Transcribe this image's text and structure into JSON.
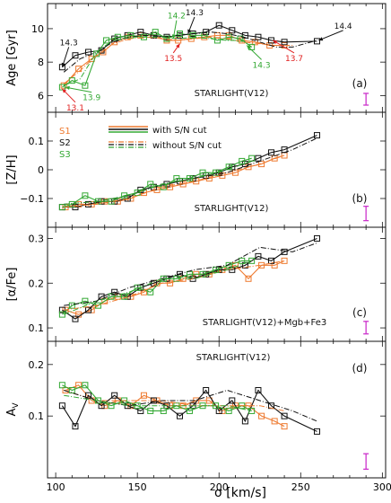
{
  "colors": {
    "orange": "#ee7a30",
    "black": "#111111",
    "green": "#33a833",
    "red": "#e02020",
    "magenta": "#cc33cc"
  },
  "xaxis": {
    "label": "σ [km/s]",
    "range": [
      95,
      302
    ],
    "ticks": [
      100,
      150,
      200,
      250,
      300
    ],
    "tick_labels": [
      "100",
      "150",
      "200",
      "250",
      "300"
    ]
  },
  "legend": {
    "samples": [
      "S1",
      "S2",
      "S3"
    ],
    "with_cut": "with S/N cut",
    "without_cut": "without S/N cut"
  },
  "chart_data": [
    {
      "type": "line",
      "panel": "(a)",
      "ylabel": "Age [Gyr]",
      "ylim": [
        5,
        11.5
      ],
      "yticks": [
        6,
        8,
        10
      ],
      "ytick_labels": [
        "6",
        "8",
        "10"
      ],
      "note": "STARLIGHT(V12)",
      "errorbar": {
        "x": 290,
        "half": 0.35
      },
      "series": [
        {
          "name": "S1",
          "color": "orange",
          "style": "solid",
          "x": [
            105,
            114,
            122,
            129,
            136,
            144,
            152,
            160,
            168,
            175,
            183,
            191,
            199,
            206,
            214,
            222,
            231,
            240
          ],
          "y": [
            6.6,
            7.6,
            8.2,
            8.6,
            9.2,
            9.5,
            9.6,
            9.6,
            9.3,
            9.3,
            9.4,
            9.5,
            9.6,
            9.6,
            9.3,
            9.2,
            9.0,
            9.0
          ]
        },
        {
          "name": "S2",
          "color": "black",
          "style": "solid",
          "x": [
            104,
            112,
            120,
            128,
            136,
            144,
            152,
            160,
            168,
            176,
            184,
            192,
            200,
            208,
            216,
            224,
            232,
            240,
            260
          ],
          "y": [
            7.7,
            8.4,
            8.6,
            8.7,
            9.4,
            9.6,
            9.8,
            9.6,
            9.5,
            9.6,
            9.7,
            9.8,
            10.2,
            9.9,
            9.6,
            9.5,
            9.3,
            9.2,
            9.25
          ]
        },
        {
          "name": "S3",
          "color": "green",
          "style": "solid",
          "x": [
            104,
            110,
            118,
            125,
            131,
            138,
            146,
            154,
            161,
            168,
            176,
            184,
            191,
            199,
            206,
            213,
            220
          ],
          "y": [
            6.5,
            6.9,
            6.6,
            8.5,
            9.3,
            9.5,
            9.6,
            9.5,
            9.8,
            9.4,
            9.7,
            9.6,
            9.6,
            9.3,
            9.5,
            9.4,
            8.9
          ]
        },
        {
          "name": "S1 no cut",
          "color": "orange",
          "style": "dashdot",
          "x": [
            105,
            115,
            125,
            135,
            145,
            155,
            165,
            175,
            185,
            195,
            205,
            215,
            225,
            235,
            245
          ],
          "y": [
            6.7,
            7.5,
            8.4,
            9.1,
            9.4,
            9.5,
            9.4,
            9.3,
            9.4,
            9.5,
            9.4,
            9.2,
            9.1,
            9.0,
            9.0
          ]
        },
        {
          "name": "S2 no cut",
          "color": "black",
          "style": "dashdot",
          "x": [
            105,
            115,
            125,
            135,
            145,
            155,
            165,
            175,
            185,
            195,
            205,
            215,
            225,
            235,
            245,
            260
          ],
          "y": [
            7.4,
            8.2,
            8.6,
            9.2,
            9.5,
            9.6,
            9.5,
            9.6,
            9.7,
            9.8,
            9.7,
            9.5,
            9.2,
            8.9,
            8.9,
            9.3
          ]
        },
        {
          "name": "S3 no cut",
          "color": "green",
          "style": "dashdot",
          "x": [
            105,
            115,
            125,
            135,
            145,
            155,
            165,
            175,
            185,
            195,
            205,
            215,
            220
          ],
          "y": [
            6.6,
            7.0,
            8.6,
            9.3,
            9.5,
            9.5,
            9.5,
            9.4,
            9.5,
            9.4,
            9.3,
            9.3,
            8.9
          ]
        }
      ],
      "annotations": [
        {
          "text": "14.3",
          "color": "black",
          "x": 104,
          "y": 7.7,
          "tx": 108,
          "ty": 8.9
        },
        {
          "text": "13.9",
          "color": "green",
          "x": 106,
          "y": 6.5,
          "tx": 122,
          "ty": 6.2
        },
        {
          "text": "13.1",
          "color": "red",
          "x": 104,
          "y": 6.4,
          "tx": 112,
          "ty": 5.6
        },
        {
          "text": "14.2",
          "color": "green",
          "x": 172,
          "y": 9.4,
          "tx": 174,
          "ty": 10.5
        },
        {
          "text": "14.3",
          "color": "black",
          "x": 181,
          "y": 9.7,
          "tx": 185,
          "ty": 10.7
        },
        {
          "text": "13.5",
          "color": "red",
          "x": 176,
          "y": 9.1,
          "tx": 172,
          "ty": 8.55
        },
        {
          "text": "14.3",
          "color": "green",
          "x": 217,
          "y": 9.0,
          "tx": 226,
          "ty": 8.15
        },
        {
          "text": "13.7",
          "color": "red",
          "x": 233,
          "y": 9.3,
          "tx": 246,
          "ty": 8.55
        },
        {
          "text": "14.4",
          "color": "black",
          "x": 261,
          "y": 9.3,
          "tx": 276,
          "ty": 9.9
        }
      ]
    },
    {
      "type": "line",
      "panel": "(b)",
      "ylabel": "[Z/H]",
      "ylim": [
        -0.2,
        0.2
      ],
      "yticks": [
        -0.1,
        0,
        0.1
      ],
      "ytick_labels": [
        "−0.1",
        "0",
        "0.1"
      ],
      "note": "STARLIGHT(V12)",
      "errorbar": {
        "x": 290,
        "half": 0.025
      },
      "series": [
        {
          "name": "S1",
          "color": "orange",
          "style": "solid",
          "x": [
            106,
            114,
            122,
            130,
            138,
            146,
            154,
            162,
            170,
            178,
            186,
            194,
            202,
            210,
            218,
            226,
            234,
            240
          ],
          "y": [
            -0.13,
            -0.12,
            -0.12,
            -0.11,
            -0.11,
            -0.1,
            -0.08,
            -0.07,
            -0.06,
            -0.05,
            -0.04,
            -0.03,
            -0.02,
            -0.01,
            0.01,
            0.02,
            0.04,
            0.05
          ]
        },
        {
          "name": "S2",
          "color": "black",
          "style": "solid",
          "x": [
            104,
            112,
            120,
            128,
            136,
            144,
            152,
            160,
            168,
            176,
            184,
            192,
            200,
            208,
            216,
            224,
            232,
            240,
            260
          ],
          "y": [
            -0.13,
            -0.13,
            -0.12,
            -0.11,
            -0.11,
            -0.1,
            -0.07,
            -0.06,
            -0.05,
            -0.04,
            -0.03,
            -0.02,
            -0.01,
            0.01,
            0.02,
            0.04,
            0.06,
            0.07,
            0.12
          ]
        },
        {
          "name": "S3",
          "color": "green",
          "style": "solid",
          "x": [
            104,
            110,
            118,
            126,
            134,
            142,
            150,
            158,
            166,
            174,
            182,
            190,
            198,
            206,
            214,
            220
          ],
          "y": [
            -0.13,
            -0.12,
            -0.09,
            -0.11,
            -0.11,
            -0.09,
            -0.08,
            -0.05,
            -0.06,
            -0.03,
            -0.03,
            -0.01,
            -0.01,
            0.01,
            0.03,
            0.04
          ]
        },
        {
          "name": "S1 no cut",
          "color": "orange",
          "style": "dashdot",
          "x": [
            105,
            125,
            145,
            165,
            185,
            205,
            225,
            240
          ],
          "y": [
            -0.13,
            -0.12,
            -0.1,
            -0.06,
            -0.04,
            -0.01,
            0.02,
            0.05
          ]
        },
        {
          "name": "S2 no cut",
          "color": "black",
          "style": "dashdot",
          "x": [
            105,
            125,
            145,
            165,
            185,
            205,
            225,
            245,
            260
          ],
          "y": [
            -0.12,
            -0.11,
            -0.09,
            -0.05,
            -0.03,
            -0.01,
            0.03,
            0.07,
            0.11
          ]
        },
        {
          "name": "S3 no cut",
          "color": "green",
          "style": "dashdot",
          "x": [
            105,
            125,
            145,
            165,
            185,
            205,
            220
          ],
          "y": [
            -0.12,
            -0.11,
            -0.09,
            -0.05,
            -0.03,
            0.0,
            0.03
          ]
        }
      ]
    },
    {
      "type": "line",
      "panel": "(c)",
      "ylabel": "[α/Fe]",
      "ylim": [
        0.07,
        0.325
      ],
      "yticks": [
        0.1,
        0.2,
        0.3
      ],
      "ytick_labels": [
        "0.1",
        "0.2",
        "0.3"
      ],
      "note": "STARLIGHT(V12)+Mgb+Fe3",
      "errorbar": {
        "x": 290,
        "half": 0.014
      },
      "series": [
        {
          "name": "S1",
          "color": "orange",
          "style": "solid",
          "x": [
            106,
            114,
            122,
            130,
            138,
            146,
            154,
            162,
            170,
            178,
            186,
            194,
            202,
            210,
            218,
            226,
            234,
            240
          ],
          "y": [
            0.14,
            0.13,
            0.14,
            0.16,
            0.17,
            0.17,
            0.18,
            0.2,
            0.2,
            0.21,
            0.22,
            0.22,
            0.23,
            0.24,
            0.21,
            0.24,
            0.24,
            0.25
          ]
        },
        {
          "name": "S2",
          "color": "black",
          "style": "solid",
          "x": [
            104,
            112,
            120,
            128,
            136,
            144,
            152,
            160,
            168,
            176,
            184,
            192,
            200,
            208,
            216,
            224,
            232,
            240,
            260
          ],
          "y": [
            0.14,
            0.12,
            0.14,
            0.17,
            0.18,
            0.17,
            0.19,
            0.2,
            0.21,
            0.22,
            0.21,
            0.22,
            0.23,
            0.23,
            0.24,
            0.26,
            0.25,
            0.27,
            0.3
          ]
        },
        {
          "name": "S3",
          "color": "green",
          "style": "solid",
          "x": [
            104,
            110,
            118,
            126,
            134,
            142,
            150,
            158,
            166,
            174,
            182,
            190,
            198,
            206,
            214,
            220
          ],
          "y": [
            0.13,
            0.15,
            0.16,
            0.15,
            0.17,
            0.17,
            0.19,
            0.18,
            0.21,
            0.21,
            0.22,
            0.22,
            0.23,
            0.24,
            0.25,
            0.25
          ]
        },
        {
          "name": "S1 no cut",
          "color": "orange",
          "style": "dashdot",
          "x": [
            105,
            125,
            145,
            165,
            185,
            205,
            225,
            240
          ],
          "y": [
            0.14,
            0.15,
            0.17,
            0.2,
            0.21,
            0.23,
            0.24,
            0.25
          ]
        },
        {
          "name": "S2 no cut",
          "color": "black",
          "style": "dashdot",
          "x": [
            105,
            125,
            145,
            165,
            185,
            205,
            225,
            245,
            260
          ],
          "y": [
            0.15,
            0.16,
            0.19,
            0.21,
            0.23,
            0.24,
            0.28,
            0.27,
            0.29
          ]
        },
        {
          "name": "S3 no cut",
          "color": "green",
          "style": "dashdot",
          "x": [
            105,
            125,
            145,
            165,
            185,
            205,
            220
          ],
          "y": [
            0.13,
            0.16,
            0.18,
            0.21,
            0.21,
            0.23,
            0.25
          ]
        }
      ]
    },
    {
      "type": "line",
      "panel": "(d)",
      "ylabel": "A_V",
      "ylim": [
        -0.02,
        0.245
      ],
      "yticks": [
        0.1,
        0.2
      ],
      "ytick_labels": [
        "0.1",
        "0.2"
      ],
      "note": "STARLIGHT(V12)",
      "errorbar": {
        "x": 290,
        "half": 0.015
      },
      "series": [
        {
          "name": "S1",
          "color": "orange",
          "style": "solid",
          "x": [
            106,
            114,
            122,
            130,
            138,
            146,
            154,
            162,
            170,
            178,
            186,
            194,
            202,
            210,
            218,
            226,
            234,
            240
          ],
          "y": [
            0.15,
            0.16,
            0.13,
            0.12,
            0.13,
            0.12,
            0.14,
            0.13,
            0.12,
            0.12,
            0.13,
            0.13,
            0.11,
            0.12,
            0.12,
            0.1,
            0.09,
            0.08
          ]
        },
        {
          "name": "S2",
          "color": "black",
          "style": "solid",
          "x": [
            104,
            112,
            120,
            128,
            136,
            144,
            152,
            160,
            168,
            176,
            184,
            192,
            200,
            208,
            216,
            224,
            232,
            240,
            260
          ],
          "y": [
            0.12,
            0.08,
            0.14,
            0.12,
            0.14,
            0.12,
            0.11,
            0.13,
            0.12,
            0.1,
            0.12,
            0.15,
            0.11,
            0.13,
            0.09,
            0.15,
            0.12,
            0.1,
            0.07
          ]
        },
        {
          "name": "S3",
          "color": "green",
          "style": "solid",
          "x": [
            104,
            110,
            118,
            126,
            134,
            142,
            150,
            158,
            166,
            174,
            182,
            190,
            198,
            206,
            214,
            220
          ],
          "y": [
            0.16,
            0.15,
            0.16,
            0.13,
            0.12,
            0.13,
            0.12,
            0.11,
            0.11,
            0.12,
            0.11,
            0.12,
            0.12,
            0.11,
            0.12,
            0.11
          ]
        },
        {
          "name": "S1 no cut",
          "color": "orange",
          "style": "dashdot",
          "x": [
            105,
            125,
            145,
            165,
            185,
            205,
            225,
            240
          ],
          "y": [
            0.15,
            0.13,
            0.13,
            0.13,
            0.12,
            0.12,
            0.12,
            0.11
          ]
        },
        {
          "name": "S2 no cut",
          "color": "black",
          "style": "dashdot",
          "x": [
            105,
            125,
            145,
            165,
            185,
            205,
            225,
            245,
            260
          ],
          "y": [
            0.15,
            0.13,
            0.12,
            0.13,
            0.13,
            0.15,
            0.13,
            0.11,
            0.09
          ]
        },
        {
          "name": "S3 no cut",
          "color": "green",
          "style": "dashdot",
          "x": [
            105,
            125,
            145,
            165,
            185,
            205,
            220
          ],
          "y": [
            0.14,
            0.13,
            0.12,
            0.12,
            0.12,
            0.12,
            0.11
          ]
        }
      ]
    }
  ]
}
